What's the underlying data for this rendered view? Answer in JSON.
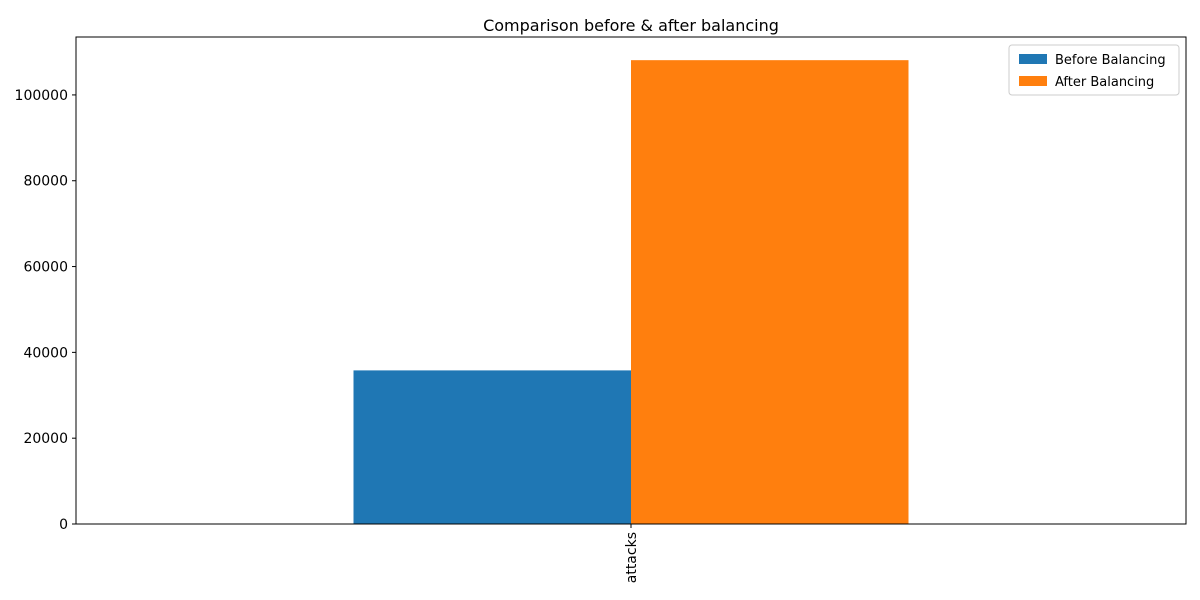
{
  "chart_data": {
    "type": "bar",
    "title": "Comparison before & after balancing",
    "xlabel": "",
    "ylabel": "",
    "categories": [
      "attacks"
    ],
    "series": [
      {
        "name": "Before Balancing",
        "values": [
          35800
        ],
        "color": "#1f77b4"
      },
      {
        "name": "After Balancing",
        "values": [
          108100
        ],
        "color": "#ff7f0e"
      }
    ],
    "ylim": [
      0,
      113500
    ],
    "yticks": [
      0,
      20000,
      40000,
      60000,
      80000,
      100000
    ],
    "legend_position": "top-right",
    "grid": false
  }
}
